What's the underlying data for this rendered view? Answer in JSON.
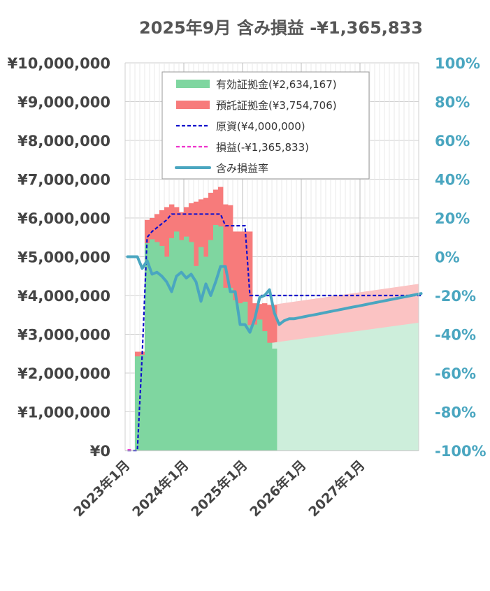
{
  "chart_data": {
    "type": "bar",
    "title": "2025年9月 含み損益 -¥1,365,833",
    "x_tick_labels": [
      "2023年1月",
      "2024年1月",
      "2025年1月",
      "2026年1月",
      "2027年1月"
    ],
    "y_left_ticks": [
      "¥0",
      "¥1,000,000",
      "¥2,000,000",
      "¥3,000,000",
      "¥4,000,000",
      "¥5,000,000",
      "¥6,000,000",
      "¥7,000,000",
      "¥8,000,000",
      "¥9,000,000",
      "¥10,000,000"
    ],
    "y_right_ticks": [
      "-100%",
      "-80%",
      "-60%",
      "-40%",
      "-20%",
      "0%",
      "20%",
      "40%",
      "60%",
      "80%",
      "100%"
    ],
    "ylim_left": [
      0,
      10000000
    ],
    "ylim_right": [
      -100,
      100
    ],
    "grid": true,
    "legend_position": "top",
    "x_start": "2023-01",
    "legend": [
      {
        "key": "green",
        "label": "有効証拠金(¥2,634,167)",
        "style": "patch",
        "color": "#7fd6a0"
      },
      {
        "key": "red",
        "label": "預託証拠金(¥3,754,706)",
        "style": "patch",
        "color": "#f77b7b"
      },
      {
        "key": "principal",
        "label": "原資(¥4,000,000)",
        "style": "dash",
        "color": "#1010cc"
      },
      {
        "key": "pnl",
        "label": "損益(-¥1,365,833)",
        "style": "dash",
        "color": "#ee33cc"
      },
      {
        "key": "rate",
        "label": "含み損益率",
        "style": "thick",
        "color": "#4aa6c0"
      }
    ],
    "colors": {
      "green": "#7fd6a0",
      "red": "#f77b7b",
      "green_projection": "#cdeedb",
      "red_projection": "#fbc3c3",
      "principal": "#1010cc",
      "pnl": "#ee33cc",
      "rate": "#4aa6c0",
      "axis_left_text": "#444444",
      "axis_right_text": "#4aa6c0"
    },
    "series": [
      {
        "name": "有効証拠金",
        "unit": "yen",
        "values": [
          0,
          0,
          2430000,
          2470000,
          5350000,
          5450000,
          5380000,
          5280000,
          5000000,
          5480000,
          5650000,
          5430000,
          5520000,
          5380000,
          4760000,
          5250000,
          5000000,
          5430000,
          5820000,
          5780000,
          4200000,
          4200000,
          3880000,
          3800000,
          3840000,
          3240000,
          3250000,
          3380000,
          3080000,
          2780000,
          2630000
        ]
      },
      {
        "name": "預託証拠金",
        "unit": "yen",
        "values": [
          0,
          0,
          2550000,
          2550000,
          5950000,
          6000000,
          6100000,
          6200000,
          6280000,
          6350000,
          6280000,
          6150000,
          6280000,
          6380000,
          6420000,
          6480000,
          6520000,
          6650000,
          6730000,
          6800000,
          6350000,
          6330000,
          5650000,
          5650000,
          5650000,
          5650000,
          3800000,
          3780000,
          3800000,
          3760000,
          3750000
        ]
      },
      {
        "name": "原資",
        "unit": "yen",
        "values": [
          0,
          0,
          0,
          2500000,
          5500000,
          5650000,
          5750000,
          5850000,
          5950000,
          6100000,
          6100000,
          6100000,
          6100000,
          6100000,
          6100000,
          6100000,
          6100000,
          6100000,
          6100000,
          6100000,
          5800000,
          5800000,
          5800000,
          5800000,
          5800000,
          4000000,
          4000000,
          4000000,
          4000000,
          4000000,
          4000000,
          4000000,
          4000000,
          4000000,
          4000000,
          4000000,
          4000000,
          4000000,
          4000000,
          4000000,
          4000000,
          4000000,
          4000000,
          4000000,
          4000000,
          4000000,
          4000000,
          4000000,
          4000000,
          4000000,
          4000000,
          4000000,
          4000000,
          4000000,
          4000000,
          4000000,
          4000000,
          4000000,
          4000000,
          4000000,
          4000000
        ]
      },
      {
        "name": "含み損益率",
        "unit": "percent",
        "values": [
          0,
          0,
          0,
          -6,
          -2,
          -9,
          -8,
          -10,
          -13,
          -18,
          -10,
          -8,
          -11,
          -9,
          -13,
          -23,
          -14,
          -20,
          -13,
          -5,
          -5,
          -18,
          -18,
          -35,
          -35,
          -39,
          -32,
          -21,
          -20,
          -17,
          -29,
          -35,
          -33,
          -32,
          -32,
          -31.5,
          -31,
          -30.5,
          -30,
          -29.5,
          -29,
          -28.5,
          -28,
          -27.5,
          -27,
          -26.5,
          -26,
          -25.5,
          -25,
          -24.5,
          -24,
          -23.5,
          -23,
          -22.5,
          -22,
          -21.5,
          -21,
          -20.5,
          -20,
          -19.5,
          -19
        ]
      },
      {
        "name": "損益",
        "unit": "yen",
        "values": [
          0,
          0
        ]
      }
    ],
    "projection": {
      "green_start": 2780000,
      "green_end": 3300000,
      "red_start": 3760000,
      "red_end": 4300000
    }
  }
}
